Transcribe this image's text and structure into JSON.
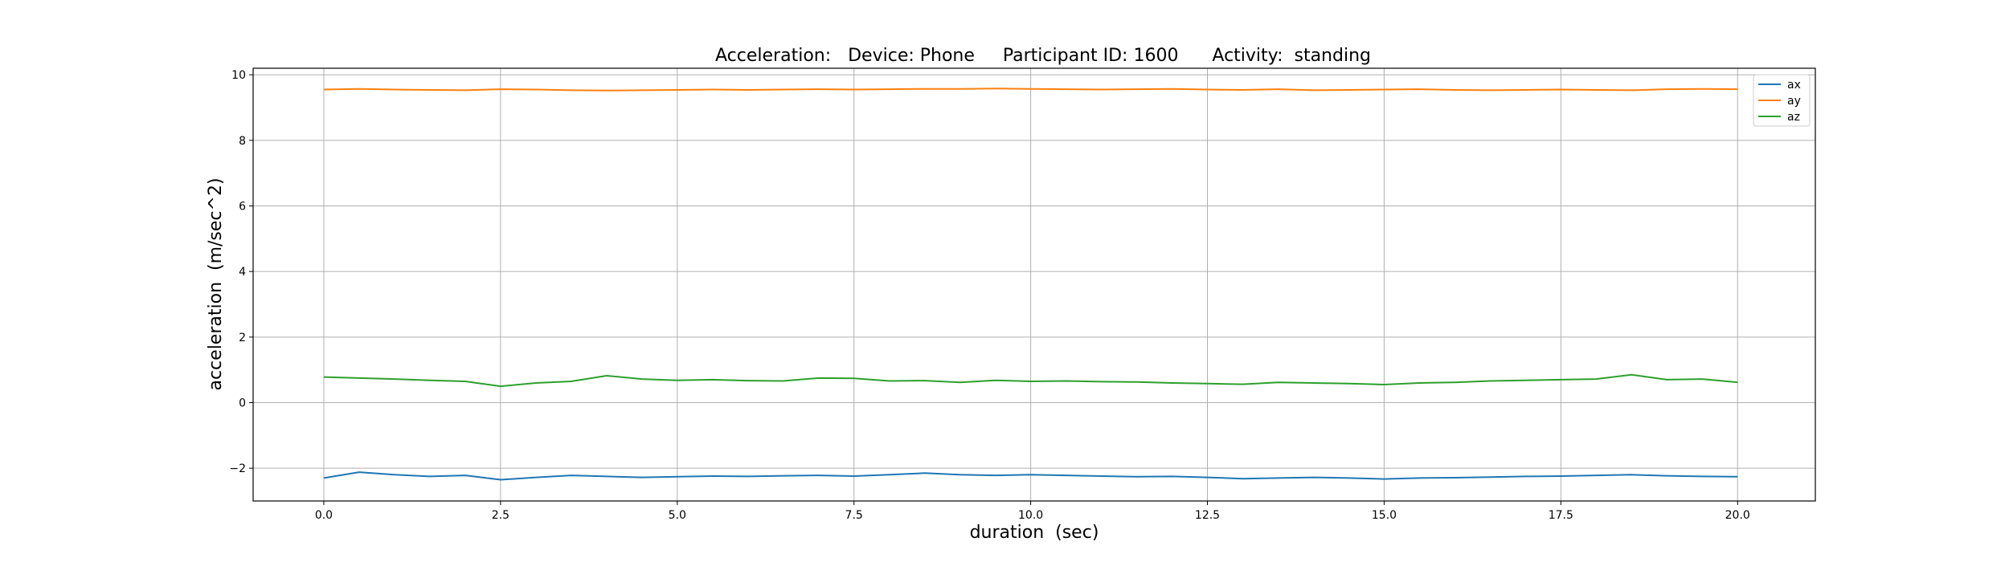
{
  "chart_data": {
    "type": "line",
    "title": "Acceleration:   Device: Phone     Participant ID: 1600      Activity:  standing",
    "xlabel": "duration  (sec)",
    "ylabel": "acceleration  (m/sec^2)",
    "xlim": [
      -1.0,
      21.1
    ],
    "ylim": [
      -3.0,
      10.2
    ],
    "xticks": [
      0.0,
      2.5,
      5.0,
      7.5,
      10.0,
      12.5,
      15.0,
      17.5,
      20.0
    ],
    "xtick_labels": [
      "0.0",
      "2.5",
      "5.0",
      "7.5",
      "10.0",
      "12.5",
      "15.0",
      "17.5",
      "20.0"
    ],
    "yticks": [
      -2,
      0,
      2,
      4,
      6,
      8,
      10
    ],
    "ytick_labels": [
      "−2",
      "0",
      "2",
      "4",
      "6",
      "8",
      "10"
    ],
    "grid": true,
    "legend_position": "top-right",
    "x": [
      0.0,
      0.5,
      1.0,
      1.5,
      2.0,
      2.5,
      3.0,
      3.5,
      4.0,
      4.5,
      5.0,
      5.5,
      6.0,
      6.5,
      7.0,
      7.5,
      8.0,
      8.5,
      9.0,
      9.5,
      10.0,
      10.5,
      11.0,
      11.5,
      12.0,
      12.5,
      13.0,
      13.5,
      14.0,
      14.5,
      15.0,
      15.5,
      16.0,
      16.5,
      17.0,
      17.5,
      18.0,
      18.5,
      19.0,
      19.5,
      20.0
    ],
    "series": [
      {
        "name": "ax",
        "color": "#1f77b4",
        "values": [
          -2.3,
          -2.12,
          -2.2,
          -2.25,
          -2.22,
          -2.35,
          -2.28,
          -2.22,
          -2.25,
          -2.28,
          -2.26,
          -2.24,
          -2.25,
          -2.23,
          -2.22,
          -2.24,
          -2.2,
          -2.15,
          -2.2,
          -2.22,
          -2.2,
          -2.22,
          -2.24,
          -2.26,
          -2.25,
          -2.28,
          -2.32,
          -2.3,
          -2.28,
          -2.3,
          -2.33,
          -2.3,
          -2.29,
          -2.27,
          -2.25,
          -2.24,
          -2.22,
          -2.2,
          -2.23,
          -2.25,
          -2.26
        ]
      },
      {
        "name": "ay",
        "color": "#ff7f0e",
        "values": [
          9.55,
          9.57,
          9.55,
          9.54,
          9.53,
          9.56,
          9.55,
          9.53,
          9.52,
          9.53,
          9.54,
          9.55,
          9.54,
          9.55,
          9.56,
          9.55,
          9.56,
          9.57,
          9.57,
          9.58,
          9.57,
          9.56,
          9.55,
          9.56,
          9.57,
          9.55,
          9.54,
          9.56,
          9.53,
          9.54,
          9.55,
          9.56,
          9.54,
          9.53,
          9.54,
          9.55,
          9.54,
          9.53,
          9.56,
          9.57,
          9.56
        ]
      },
      {
        "name": "az",
        "color": "#2ca02c",
        "values": [
          0.78,
          0.75,
          0.72,
          0.68,
          0.65,
          0.5,
          0.6,
          0.65,
          0.82,
          0.72,
          0.68,
          0.7,
          0.67,
          0.66,
          0.75,
          0.74,
          0.66,
          0.67,
          0.62,
          0.68,
          0.65,
          0.66,
          0.64,
          0.63,
          0.6,
          0.58,
          0.56,
          0.62,
          0.6,
          0.58,
          0.55,
          0.6,
          0.62,
          0.66,
          0.68,
          0.7,
          0.72,
          0.85,
          0.7,
          0.72,
          0.62
        ]
      }
    ]
  }
}
